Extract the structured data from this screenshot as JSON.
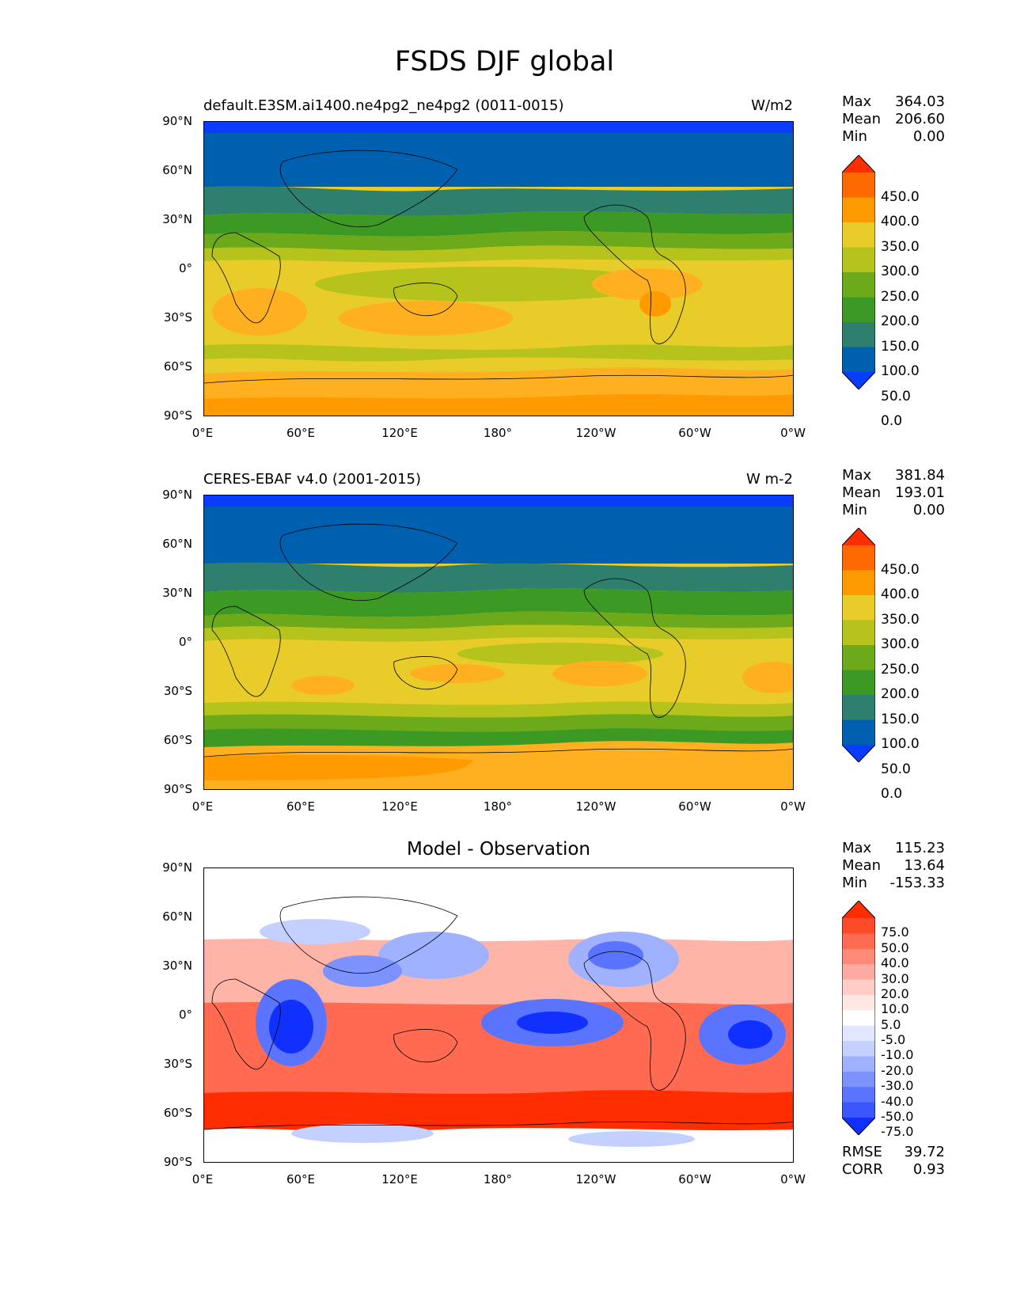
{
  "figure_title": "FSDS DJF global",
  "panels": [
    {
      "title_left": "default.E3SM.ai1400.ne4pg2_ne4pg2 (0011-0015)",
      "title_right": "W/m2",
      "stats": [
        {
          "label": "Max",
          "value": "364.03"
        },
        {
          "label": "Mean",
          "value": "206.60"
        },
        {
          "label": "Min",
          "value": "0.00"
        }
      ],
      "colorbar_labels": [
        "450.0",
        "400.0",
        "350.0",
        "300.0",
        "250.0",
        "200.0",
        "150.0",
        "100.0",
        "50.0",
        "0.0"
      ],
      "colorbar_colors": [
        "#ff2d00",
        "#ff6a00",
        "#ff9a00",
        "#e8cc2a",
        "#b6c31d",
        "#6caa1c",
        "#3c9a24",
        "#2e7f6e",
        "#0060b0",
        "#0a3cff"
      ]
    },
    {
      "title_left": "CERES-EBAF v4.0 (2001-2015)",
      "title_right": "W m-2",
      "stats": [
        {
          "label": "Max",
          "value": "381.84"
        },
        {
          "label": "Mean",
          "value": "193.01"
        },
        {
          "label": "Min",
          "value": "0.00"
        }
      ],
      "colorbar_labels": [
        "450.0",
        "400.0",
        "350.0",
        "300.0",
        "250.0",
        "200.0",
        "150.0",
        "100.0",
        "50.0",
        "0.0"
      ],
      "colorbar_colors": [
        "#ff2d00",
        "#ff6a00",
        "#ff9a00",
        "#e8cc2a",
        "#b6c31d",
        "#6caa1c",
        "#3c9a24",
        "#2e7f6e",
        "#0060b0",
        "#0a3cff"
      ]
    },
    {
      "title_center": "Model - Observation",
      "stats": [
        {
          "label": "Max",
          "value": "115.23"
        },
        {
          "label": "Mean",
          "value": "13.64"
        },
        {
          "label": "Min",
          "value": "-153.33"
        }
      ],
      "colorbar_labels": [
        "75.0",
        "50.0",
        "40.0",
        "30.0",
        "20.0",
        "10.0",
        "5.0",
        "-5.0",
        "-10.0",
        "-20.0",
        "-30.0",
        "-40.0",
        "-50.0",
        "-75.0"
      ],
      "colorbar_colors": [
        "#ff2d00",
        "#ff4a2a",
        "#ff6a50",
        "#ff8a78",
        "#ffaaa0",
        "#ffccc6",
        "#ffe8e4",
        "#ffffff",
        "#e2e8ff",
        "#c4d0ff",
        "#a0b2ff",
        "#7c92ff",
        "#5a74ff",
        "#3a56ff",
        "#1030ff"
      ],
      "bottom_stats": [
        {
          "label": "RMSE",
          "value": "39.72"
        },
        {
          "label": "CORR",
          "value": "0.93"
        }
      ]
    }
  ],
  "axes": {
    "lat_ticks": [
      "90°N",
      "60°N",
      "30°N",
      "0°",
      "30°S",
      "60°S",
      "90°S"
    ],
    "lon_ticks": [
      "0°E",
      "60°E",
      "120°E",
      "180°",
      "120°W",
      "60°W",
      "0°W"
    ]
  }
}
